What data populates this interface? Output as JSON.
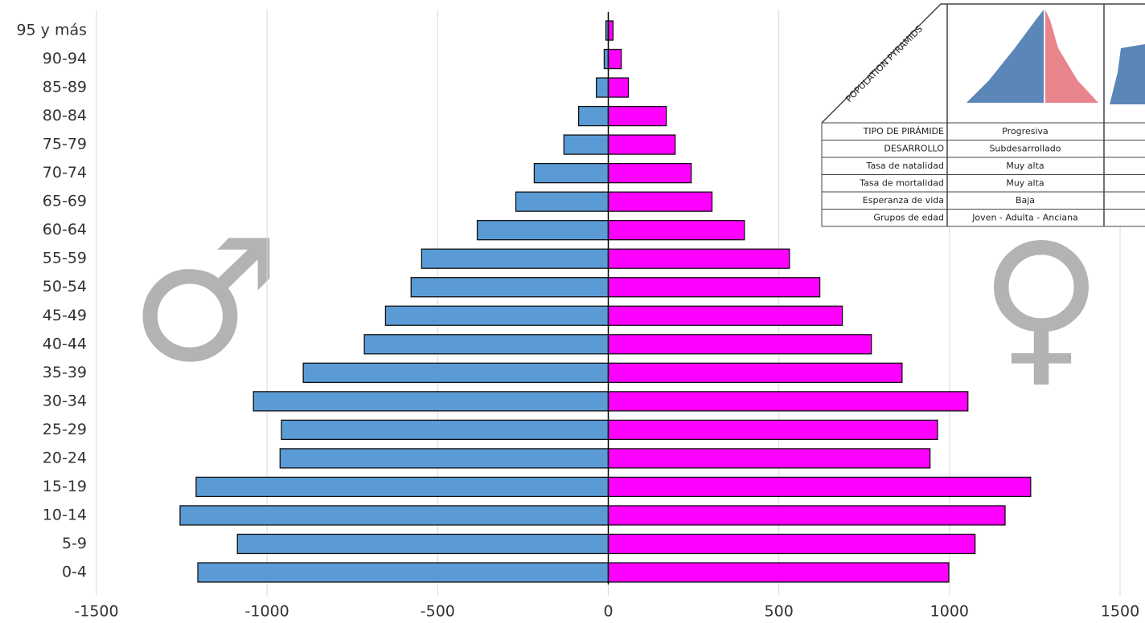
{
  "chart_data": {
    "type": "pyramid",
    "categories": [
      "0-4",
      "5-9",
      "10-14",
      "15-19",
      "20-24",
      "25-29",
      "30-34",
      "35-39",
      "40-44",
      "45-49",
      "50-54",
      "55-59",
      "60-64",
      "65-69",
      "70-74",
      "75-79",
      "80-84",
      "85-89",
      "90-94",
      "95 y más"
    ],
    "series": [
      {
        "color": "#5b9bd5",
        "values": [
          -1203,
          -1087,
          -1255,
          -1208,
          -962,
          -958,
          -1040,
          -894,
          -715,
          -653,
          -578,
          -547,
          -384,
          -271,
          -217,
          -130,
          -87,
          -35,
          -12,
          -7
        ]
      },
      {
        "color": "#ff00ff",
        "values": [
          998,
          1075,
          1163,
          1238,
          943,
          965,
          1054,
          861,
          771,
          686,
          620,
          531,
          399,
          304,
          243,
          196,
          170,
          59,
          38,
          14
        ]
      }
    ],
    "xlim": [
      -1500,
      1500
    ],
    "xticks": [
      -1500,
      -1000,
      -500,
      0,
      500,
      1000,
      1500
    ],
    "grid": true,
    "annotations": [
      "♂",
      "♀"
    ],
    "inset": {
      "title": "POPULATION PYRAMIDS",
      "rows": [
        [
          "TIPO DE PIRÁMIDE",
          "Progresiva"
        ],
        [
          "DESARROLLO",
          "Subdesarrollado"
        ],
        [
          "Tasa de natalidad",
          "Muy alta"
        ],
        [
          "Tasa de mortalidad",
          "Muy alta"
        ],
        [
          "Esperanza de vida",
          "Baja"
        ],
        [
          "Grupos de edad",
          "Joven - Adulta - Anciana"
        ]
      ]
    }
  }
}
